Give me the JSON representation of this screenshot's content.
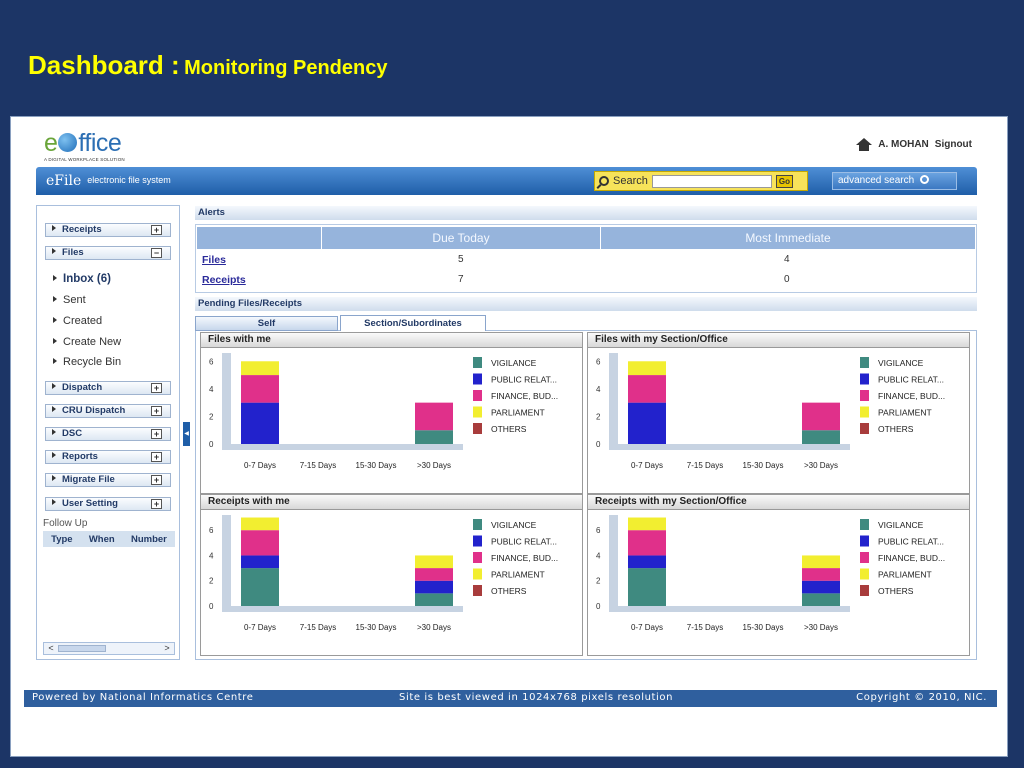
{
  "slide": {
    "title_main": "Dashboard :",
    "title_sub": "Monitoring Pendency"
  },
  "logo": {
    "name_prefix": "e",
    "name_suffix": "ffice",
    "tagline": "A DIGITAL WORKPLACE SOLUTION"
  },
  "user": {
    "name": "A. MOHAN",
    "signout": "Signout",
    "home_icon": "home-icon"
  },
  "appbar": {
    "brand": "eFile",
    "brand_sub": "electronic file system",
    "search_label": "Search",
    "search_value": "",
    "go_label": "Go",
    "advanced_search": "advanced search",
    "colors": {
      "bar": "#1f5ea8",
      "search_bg": "#f7e35a"
    }
  },
  "sidebar": {
    "groups": [
      {
        "label": "Receipts",
        "toggle": "+"
      },
      {
        "label": "Files",
        "toggle": "−"
      },
      {
        "label": "Dispatch",
        "toggle": "+"
      },
      {
        "label": "CRU Dispatch",
        "toggle": "+"
      },
      {
        "label": "DSC",
        "toggle": "+"
      },
      {
        "label": "Reports",
        "toggle": "+"
      },
      {
        "label": "Migrate File",
        "toggle": "+"
      },
      {
        "label": "User Setting",
        "toggle": "+"
      }
    ],
    "file_links": [
      "Inbox (6)",
      "Sent",
      "Created",
      "Create New",
      "Recycle Bin"
    ],
    "followup": {
      "label": "Follow Up",
      "columns": [
        "Type",
        "When",
        "Number"
      ]
    },
    "scroll_left": "<",
    "scroll_right": ">"
  },
  "alerts": {
    "title": "Alerts",
    "columns": [
      "",
      "Due Today",
      "Most Immediate"
    ],
    "rows": [
      {
        "label": "Files",
        "due_today": "5",
        "most_immediate": "4"
      },
      {
        "label": "Receipts",
        "due_today": "7",
        "most_immediate": "0"
      }
    ]
  },
  "pending": {
    "title": "Pending Files/Receipts",
    "tabs": [
      "Self",
      "Section/Subordinates"
    ]
  },
  "chart_data": [
    {
      "type": "bar",
      "stacked": true,
      "title": "Files with me",
      "categories": [
        "0-7 Days",
        "7-15 Days",
        "15-30 Days",
        ">30 Days"
      ],
      "yticks": [
        0,
        2,
        4,
        6
      ],
      "ylim": [
        0,
        6.6
      ],
      "series": [
        {
          "name": "VIGILANCE",
          "color": "#3f8a80",
          "values": [
            0,
            0,
            0,
            1
          ]
        },
        {
          "name": "PUBLIC RELAT...",
          "color": "#2222cc",
          "values": [
            3,
            0,
            0,
            0
          ]
        },
        {
          "name": "FINANCE, BUD...",
          "color": "#e0308a",
          "values": [
            2,
            0,
            0,
            2
          ]
        },
        {
          "name": "PARLIAMENT",
          "color": "#f2ee30",
          "values": [
            1,
            0,
            0,
            0
          ]
        },
        {
          "name": "OTHERS",
          "color": "#a83c3c",
          "values": [
            0,
            0,
            0,
            0
          ]
        }
      ],
      "legend": "right"
    },
    {
      "type": "bar",
      "stacked": true,
      "title": "Files with my Section/Office",
      "categories": [
        "0-7 Days",
        "7-15 Days",
        "15-30 Days",
        ">30 Days"
      ],
      "yticks": [
        0,
        2,
        4,
        6
      ],
      "ylim": [
        0,
        6.6
      ],
      "series": [
        {
          "name": "VIGILANCE",
          "color": "#3f8a80",
          "values": [
            0,
            0,
            0,
            1
          ]
        },
        {
          "name": "PUBLIC RELAT...",
          "color": "#2222cc",
          "values": [
            3,
            0,
            0,
            0
          ]
        },
        {
          "name": "FINANCE, BUD...",
          "color": "#e0308a",
          "values": [
            2,
            0,
            0,
            2
          ]
        },
        {
          "name": "PARLIAMENT",
          "color": "#f2ee30",
          "values": [
            1,
            0,
            0,
            0
          ]
        },
        {
          "name": "OTHERS",
          "color": "#a83c3c",
          "values": [
            0,
            0,
            0,
            0
          ]
        }
      ],
      "legend": "right"
    },
    {
      "type": "bar",
      "stacked": true,
      "title": "Receipts with me",
      "categories": [
        "0-7 Days",
        "7-15 Days",
        "15-30 Days",
        ">30 Days"
      ],
      "yticks": [
        0,
        2,
        4,
        6
      ],
      "ylim": [
        0,
        7.2
      ],
      "series": [
        {
          "name": "VIGILANCE",
          "color": "#3f8a80",
          "values": [
            3,
            0,
            0,
            1
          ]
        },
        {
          "name": "PUBLIC RELAT...",
          "color": "#2222cc",
          "values": [
            1,
            0,
            0,
            1
          ]
        },
        {
          "name": "FINANCE, BUD...",
          "color": "#e0308a",
          "values": [
            2,
            0,
            0,
            1
          ]
        },
        {
          "name": "PARLIAMENT",
          "color": "#f2ee30",
          "values": [
            1,
            0,
            0,
            1
          ]
        },
        {
          "name": "OTHERS",
          "color": "#a83c3c",
          "values": [
            0,
            0,
            0,
            0
          ]
        }
      ],
      "legend": "right"
    },
    {
      "type": "bar",
      "stacked": true,
      "title": "Receipts with my Section/Office",
      "categories": [
        "0-7 Days",
        "7-15 Days",
        "15-30 Days",
        ">30 Days"
      ],
      "yticks": [
        0,
        2,
        4,
        6
      ],
      "ylim": [
        0,
        7.2
      ],
      "series": [
        {
          "name": "VIGILANCE",
          "color": "#3f8a80",
          "values": [
            3,
            0,
            0,
            1
          ]
        },
        {
          "name": "PUBLIC RELAT...",
          "color": "#2222cc",
          "values": [
            1,
            0,
            0,
            1
          ]
        },
        {
          "name": "FINANCE, BUD...",
          "color": "#e0308a",
          "values": [
            2,
            0,
            0,
            1
          ]
        },
        {
          "name": "PARLIAMENT",
          "color": "#f2ee30",
          "values": [
            1,
            0,
            0,
            1
          ]
        },
        {
          "name": "OTHERS",
          "color": "#a83c3c",
          "values": [
            0,
            0,
            0,
            0
          ]
        }
      ],
      "legend": "right"
    }
  ],
  "footer": {
    "left": "Powered by National Informatics Centre",
    "center": "Site is best viewed in 1024x768 pixels resolution",
    "right": "Copyright © 2010, NIC."
  }
}
